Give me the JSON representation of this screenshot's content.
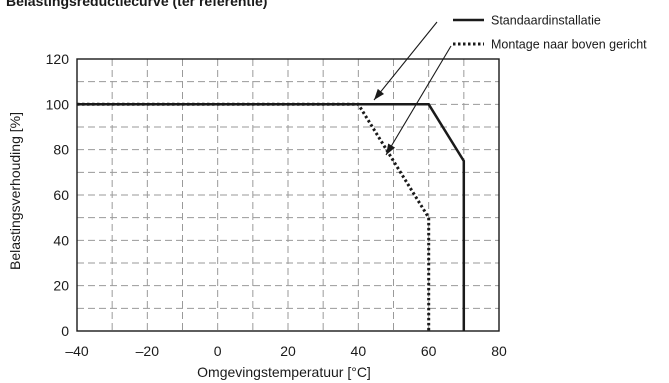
{
  "chart_data": {
    "type": "line",
    "title": "Belastingsreductiecurve (ter referentie)",
    "xlabel": "Omgevingstemperatuur [°C]",
    "ylabel": "Belastingsverhouding [%]",
    "xlim": [
      -40,
      80
    ],
    "ylim": [
      0,
      120
    ],
    "x_ticks": [
      -40,
      -20,
      0,
      20,
      40,
      60,
      80
    ],
    "y_ticks": [
      0,
      20,
      40,
      60,
      80,
      100,
      120
    ],
    "x_tick_labels": [
      "–40",
      "–20",
      "0",
      "20",
      "40",
      "60",
      "80"
    ],
    "y_tick_labels": [
      "0",
      "20",
      "40",
      "60",
      "80",
      "100",
      "120"
    ],
    "grid": true,
    "grid_x_step": 10,
    "grid_y_step": 10,
    "legend_position": "top-right",
    "series": [
      {
        "name": "Standaardinstallatie",
        "style": "solid",
        "color": "#1a1a1a",
        "x": [
          -40,
          60,
          70,
          70
        ],
        "y": [
          100,
          100,
          75,
          0
        ]
      },
      {
        "name": "Montage naar boven gericht",
        "style": "dotted",
        "color": "#1a1a1a",
        "x": [
          -40,
          40,
          60,
          60
        ],
        "y": [
          100,
          100,
          50,
          0
        ]
      }
    ]
  }
}
